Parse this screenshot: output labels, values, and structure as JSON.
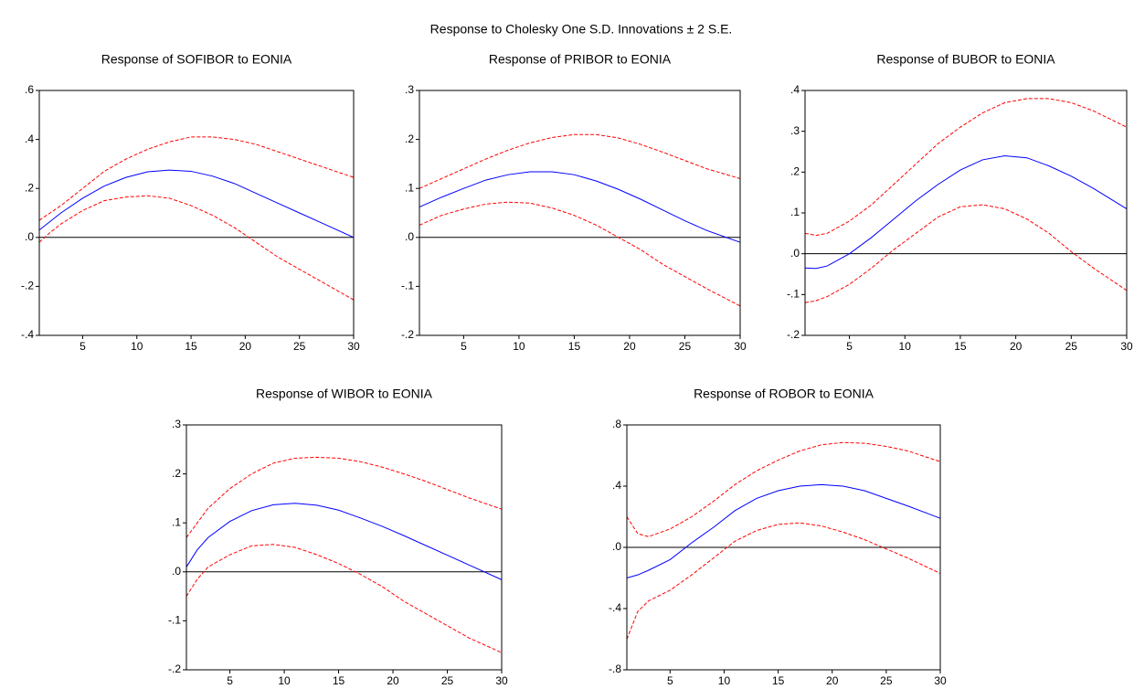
{
  "title": "Response to Cholesky One S.D. Innovations ± 2 S.E.",
  "chart_data": [
    {
      "type": "line",
      "title": "Response of SOFIBOR to EONIA",
      "x": [
        1,
        2,
        3,
        5,
        7,
        9,
        11,
        13,
        15,
        17,
        19,
        21,
        23,
        25,
        27,
        30
      ],
      "xlim": [
        1,
        30
      ],
      "xticks": [
        5,
        10,
        15,
        20,
        25,
        30
      ],
      "ylim": [
        -0.4,
        0.6
      ],
      "yticks": [
        {
          "value": -0.4,
          "label": "-.4"
        },
        {
          "value": -0.2,
          "label": "-.2"
        },
        {
          "value": 0,
          "label": ".0"
        },
        {
          "value": 0.2,
          "label": ".2"
        },
        {
          "value": 0.4,
          "label": ".4"
        },
        {
          "value": 0.6,
          "label": ".6"
        }
      ],
      "zero_line": true,
      "series": [
        {
          "color": "#0000ff",
          "dashed": false,
          "values": [
            0.03,
            0.065,
            0.1,
            0.16,
            0.21,
            0.245,
            0.268,
            0.275,
            0.27,
            0.25,
            0.22,
            0.18,
            0.14,
            0.1,
            0.06,
            0.0
          ]
        },
        {
          "color": "#ff0000",
          "dashed": true,
          "values": [
            0.07,
            0.1,
            0.13,
            0.2,
            0.27,
            0.32,
            0.36,
            0.39,
            0.41,
            0.41,
            0.4,
            0.38,
            0.35,
            0.32,
            0.29,
            0.245
          ]
        },
        {
          "color": "#ff0000",
          "dashed": true,
          "values": [
            -0.02,
            0.02,
            0.055,
            0.11,
            0.15,
            0.165,
            0.17,
            0.16,
            0.13,
            0.09,
            0.04,
            -0.02,
            -0.08,
            -0.13,
            -0.18,
            -0.255
          ]
        }
      ]
    },
    {
      "type": "line",
      "title": "Response of PRIBOR to EONIA",
      "x": [
        1,
        2,
        3,
        5,
        7,
        9,
        11,
        13,
        15,
        17,
        19,
        21,
        23,
        25,
        27,
        30
      ],
      "xlim": [
        1,
        30
      ],
      "xticks": [
        5,
        10,
        15,
        20,
        25,
        30
      ],
      "ylim": [
        -0.2,
        0.3
      ],
      "yticks": [
        {
          "value": -0.2,
          "label": "-.2"
        },
        {
          "value": -0.1,
          "label": "-.1"
        },
        {
          "value": 0,
          "label": ".0"
        },
        {
          "value": 0.1,
          "label": ".1"
        },
        {
          "value": 0.2,
          "label": ".2"
        },
        {
          "value": 0.3,
          "label": ".3"
        }
      ],
      "zero_line": true,
      "series": [
        {
          "color": "#0000ff",
          "dashed": false,
          "values": [
            0.062,
            0.072,
            0.082,
            0.1,
            0.117,
            0.128,
            0.134,
            0.134,
            0.128,
            0.115,
            0.098,
            0.078,
            0.056,
            0.034,
            0.014,
            -0.01
          ]
        },
        {
          "color": "#ff0000",
          "dashed": true,
          "values": [
            0.1,
            0.11,
            0.12,
            0.14,
            0.16,
            0.178,
            0.193,
            0.204,
            0.21,
            0.21,
            0.203,
            0.19,
            0.174,
            0.157,
            0.14,
            0.12
          ]
        },
        {
          "color": "#ff0000",
          "dashed": true,
          "values": [
            0.025,
            0.035,
            0.045,
            0.058,
            0.068,
            0.072,
            0.07,
            0.06,
            0.045,
            0.025,
            0.0,
            -0.025,
            -0.055,
            -0.08,
            -0.105,
            -0.14
          ]
        }
      ]
    },
    {
      "type": "line",
      "title": "Response of BUBOR to EONIA",
      "x": [
        1,
        2,
        3,
        5,
        7,
        9,
        11,
        13,
        15,
        17,
        19,
        21,
        23,
        25,
        27,
        30
      ],
      "xlim": [
        1,
        30
      ],
      "xticks": [
        5,
        10,
        15,
        20,
        25,
        30
      ],
      "ylim": [
        -0.2,
        0.4
      ],
      "yticks": [
        {
          "value": -0.2,
          "label": "-.2"
        },
        {
          "value": -0.1,
          "label": "-.1"
        },
        {
          "value": 0,
          "label": ".0"
        },
        {
          "value": 0.1,
          "label": ".1"
        },
        {
          "value": 0.2,
          "label": ".2"
        },
        {
          "value": 0.3,
          "label": ".3"
        },
        {
          "value": 0.4,
          "label": ".4"
        }
      ],
      "zero_line": true,
      "series": [
        {
          "color": "#0000ff",
          "dashed": false,
          "values": [
            -0.035,
            -0.036,
            -0.03,
            0.0,
            0.04,
            0.085,
            0.13,
            0.17,
            0.205,
            0.23,
            0.24,
            0.235,
            0.215,
            0.19,
            0.16,
            0.11
          ]
        },
        {
          "color": "#ff0000",
          "dashed": true,
          "values": [
            0.05,
            0.045,
            0.05,
            0.08,
            0.12,
            0.17,
            0.22,
            0.27,
            0.31,
            0.345,
            0.37,
            0.38,
            0.38,
            0.37,
            0.35,
            0.31
          ]
        },
        {
          "color": "#ff0000",
          "dashed": true,
          "values": [
            -0.12,
            -0.115,
            -0.105,
            -0.075,
            -0.035,
            0.01,
            0.05,
            0.09,
            0.115,
            0.12,
            0.11,
            0.085,
            0.05,
            0.005,
            -0.035,
            -0.09
          ]
        }
      ]
    },
    {
      "type": "line",
      "title": "Response of WIBOR to EONIA",
      "x": [
        1,
        2,
        3,
        5,
        7,
        9,
        11,
        13,
        15,
        17,
        19,
        21,
        23,
        25,
        27,
        30
      ],
      "xlim": [
        1,
        30
      ],
      "xticks": [
        5,
        10,
        15,
        20,
        25,
        30
      ],
      "ylim": [
        -0.2,
        0.3
      ],
      "yticks": [
        {
          "value": -0.2,
          "label": "-.2"
        },
        {
          "value": -0.1,
          "label": "-.1"
        },
        {
          "value": 0,
          "label": ".0"
        },
        {
          "value": 0.1,
          "label": ".1"
        },
        {
          "value": 0.2,
          "label": ".2"
        },
        {
          "value": 0.3,
          "label": ".3"
        }
      ],
      "zero_line": true,
      "series": [
        {
          "color": "#0000ff",
          "dashed": false,
          "values": [
            0.01,
            0.045,
            0.07,
            0.103,
            0.125,
            0.137,
            0.14,
            0.136,
            0.126,
            0.11,
            0.093,
            0.074,
            0.054,
            0.034,
            0.014,
            -0.016
          ]
        },
        {
          "color": "#ff0000",
          "dashed": true,
          "values": [
            0.07,
            0.1,
            0.13,
            0.17,
            0.2,
            0.222,
            0.232,
            0.234,
            0.232,
            0.225,
            0.214,
            0.2,
            0.185,
            0.168,
            0.151,
            0.128
          ]
        },
        {
          "color": "#ff0000",
          "dashed": true,
          "values": [
            -0.05,
            -0.015,
            0.01,
            0.035,
            0.053,
            0.056,
            0.05,
            0.035,
            0.017,
            -0.005,
            -0.03,
            -0.06,
            -0.085,
            -0.11,
            -0.135,
            -0.165
          ]
        }
      ]
    },
    {
      "type": "line",
      "title": "Response of ROBOR to EONIA",
      "x": [
        1,
        2,
        3,
        5,
        7,
        9,
        11,
        13,
        15,
        17,
        19,
        21,
        23,
        25,
        27,
        30
      ],
      "xlim": [
        1,
        30
      ],
      "xticks": [
        5,
        10,
        15,
        20,
        25,
        30
      ],
      "ylim": [
        -0.8,
        0.8
      ],
      "yticks": [
        {
          "value": -0.8,
          "label": "-.8"
        },
        {
          "value": -0.4,
          "label": "-.4"
        },
        {
          "value": 0,
          "label": ".0"
        },
        {
          "value": 0.4,
          "label": ".4"
        },
        {
          "value": 0.8,
          "label": ".8"
        }
      ],
      "zero_line": true,
      "series": [
        {
          "color": "#0000ff",
          "dashed": false,
          "values": [
            -0.2,
            -0.18,
            -0.15,
            -0.08,
            0.03,
            0.13,
            0.24,
            0.32,
            0.37,
            0.4,
            0.41,
            0.4,
            0.37,
            0.32,
            0.27,
            0.19
          ]
        },
        {
          "color": "#ff0000",
          "dashed": true,
          "values": [
            0.2,
            0.09,
            0.07,
            0.12,
            0.2,
            0.3,
            0.41,
            0.5,
            0.57,
            0.63,
            0.67,
            0.685,
            0.68,
            0.66,
            0.63,
            0.56
          ]
        },
        {
          "color": "#ff0000",
          "dashed": true,
          "values": [
            -0.6,
            -0.42,
            -0.35,
            -0.28,
            -0.18,
            -0.07,
            0.04,
            0.11,
            0.15,
            0.16,
            0.14,
            0.1,
            0.05,
            -0.01,
            -0.07,
            -0.17
          ]
        }
      ]
    }
  ]
}
